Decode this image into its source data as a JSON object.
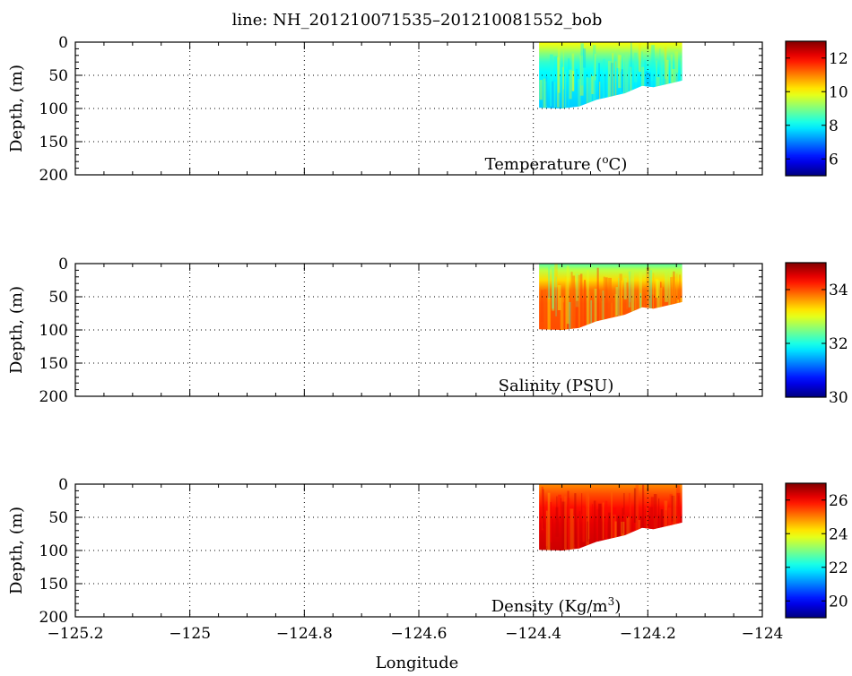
{
  "title": "line: NH_201210071535–201210081552_bob",
  "xlabel": "Longitude",
  "chart_data": [
    {
      "type": "heatmap",
      "panel_label": "Temperature (°C)",
      "panel_label_base": "Temperature (",
      "panel_label_sup": "o",
      "panel_label_tail": "C)",
      "xlabel": "Longitude",
      "ylabel": "Depth, (m)",
      "xlim": [
        -125.2,
        -124
      ],
      "ylim": [
        200,
        0
      ],
      "y_inverted": true,
      "xticks": [
        -125.2,
        -125,
        -124.8,
        -124.6,
        -124.4,
        -124.2,
        -124
      ],
      "xtick_labels": [
        "−125.2",
        "−125",
        "−124.8",
        "−124.6",
        "−124.4",
        "−124.2",
        "−124"
      ],
      "yticks": [
        0,
        50,
        100,
        150,
        200
      ],
      "ytick_labels": [
        "0",
        "50",
        "100",
        "150",
        "200"
      ],
      "grid": true,
      "colormap": "jet",
      "color_range": [
        5,
        13
      ],
      "colorbar_ticks": [
        6,
        8,
        10,
        12
      ],
      "colorbar_tick_labels": [
        "6",
        "8",
        "10",
        "12"
      ],
      "data_extent": {
        "lon_range": [
          -124.39,
          -124.14
        ],
        "bottom_depth": [
          {
            "lon": -124.39,
            "depth": 99
          },
          {
            "lon": -124.35,
            "depth": 100
          },
          {
            "lon": -124.32,
            "depth": 97
          },
          {
            "lon": -124.29,
            "depth": 87
          },
          {
            "lon": -124.24,
            "depth": 77
          },
          {
            "lon": -124.21,
            "depth": 66
          },
          {
            "lon": -124.19,
            "depth": 68
          },
          {
            "lon": -124.16,
            "depth": 62
          },
          {
            "lon": -124.14,
            "depth": 58
          }
        ]
      },
      "profile": [
        {
          "depth": 0,
          "value": 10.0
        },
        {
          "depth": 8,
          "value": 9.6
        },
        {
          "depth": 18,
          "value": 9.0
        },
        {
          "depth": 30,
          "value": 8.4
        },
        {
          "depth": 45,
          "value": 8.0
        },
        {
          "depth": 100,
          "value": 7.6
        }
      ]
    },
    {
      "type": "heatmap",
      "panel_label": "Salinity (PSU)",
      "xlabel": "Longitude",
      "ylabel": "Depth, (m)",
      "xlim": [
        -125.2,
        -124
      ],
      "ylim": [
        200,
        0
      ],
      "y_inverted": true,
      "xticks": [
        -125.2,
        -125,
        -124.8,
        -124.6,
        -124.4,
        -124.2,
        -124
      ],
      "xtick_labels": [
        "−125.2",
        "−125",
        "−124.8",
        "−124.6",
        "−124.4",
        "−124.2",
        "−124"
      ],
      "yticks": [
        0,
        50,
        100,
        150,
        200
      ],
      "ytick_labels": [
        "0",
        "50",
        "100",
        "150",
        "200"
      ],
      "grid": true,
      "colormap": "jet",
      "color_range": [
        30,
        35
      ],
      "colorbar_ticks": [
        30,
        32,
        34
      ],
      "colorbar_tick_labels": [
        "30",
        "32",
        "34"
      ],
      "data_extent": {
        "lon_range": [
          -124.39,
          -124.14
        ],
        "bottom_depth": [
          {
            "lon": -124.39,
            "depth": 99
          },
          {
            "lon": -124.35,
            "depth": 100
          },
          {
            "lon": -124.32,
            "depth": 97
          },
          {
            "lon": -124.29,
            "depth": 87
          },
          {
            "lon": -124.24,
            "depth": 77
          },
          {
            "lon": -124.21,
            "depth": 66
          },
          {
            "lon": -124.19,
            "depth": 68
          },
          {
            "lon": -124.16,
            "depth": 62
          },
          {
            "lon": -124.14,
            "depth": 58
          }
        ]
      },
      "profile": [
        {
          "depth": 0,
          "value": 32.3
        },
        {
          "depth": 10,
          "value": 32.8
        },
        {
          "depth": 25,
          "value": 33.3
        },
        {
          "depth": 40,
          "value": 33.8
        },
        {
          "depth": 60,
          "value": 33.95
        },
        {
          "depth": 100,
          "value": 34.0
        }
      ]
    },
    {
      "type": "heatmap",
      "panel_label": "Density (Kg/m³)",
      "panel_label_base": "Density (Kg/m",
      "panel_label_sup": "3",
      "panel_label_tail": ")",
      "xlabel": "Longitude",
      "ylabel": "Depth, (m)",
      "xlim": [
        -125.2,
        -124
      ],
      "ylim": [
        200,
        0
      ],
      "y_inverted": true,
      "xticks": [
        -125.2,
        -125,
        -124.8,
        -124.6,
        -124.4,
        -124.2,
        -124
      ],
      "xtick_labels": [
        "−125.2",
        "−125",
        "−124.8",
        "−124.6",
        "−124.4",
        "−124.2",
        "−124"
      ],
      "yticks": [
        0,
        50,
        100,
        150,
        200
      ],
      "ytick_labels": [
        "0",
        "50",
        "100",
        "150",
        "200"
      ],
      "grid": true,
      "colormap": "jet",
      "color_range": [
        19,
        27
      ],
      "colorbar_ticks": [
        20,
        22,
        24,
        26
      ],
      "colorbar_tick_labels": [
        "20",
        "22",
        "24",
        "26"
      ],
      "data_extent": {
        "lon_range": [
          -124.39,
          -124.14
        ],
        "bottom_depth": [
          {
            "lon": -124.39,
            "depth": 99
          },
          {
            "lon": -124.35,
            "depth": 100
          },
          {
            "lon": -124.32,
            "depth": 97
          },
          {
            "lon": -124.29,
            "depth": 87
          },
          {
            "lon": -124.24,
            "depth": 77
          },
          {
            "lon": -124.21,
            "depth": 66
          },
          {
            "lon": -124.19,
            "depth": 68
          },
          {
            "lon": -124.16,
            "depth": 62
          },
          {
            "lon": -124.14,
            "depth": 58
          }
        ]
      },
      "profile": [
        {
          "depth": 0,
          "value": 24.9
        },
        {
          "depth": 15,
          "value": 25.4
        },
        {
          "depth": 35,
          "value": 25.9
        },
        {
          "depth": 60,
          "value": 26.2
        },
        {
          "depth": 100,
          "value": 26.4
        }
      ]
    }
  ]
}
